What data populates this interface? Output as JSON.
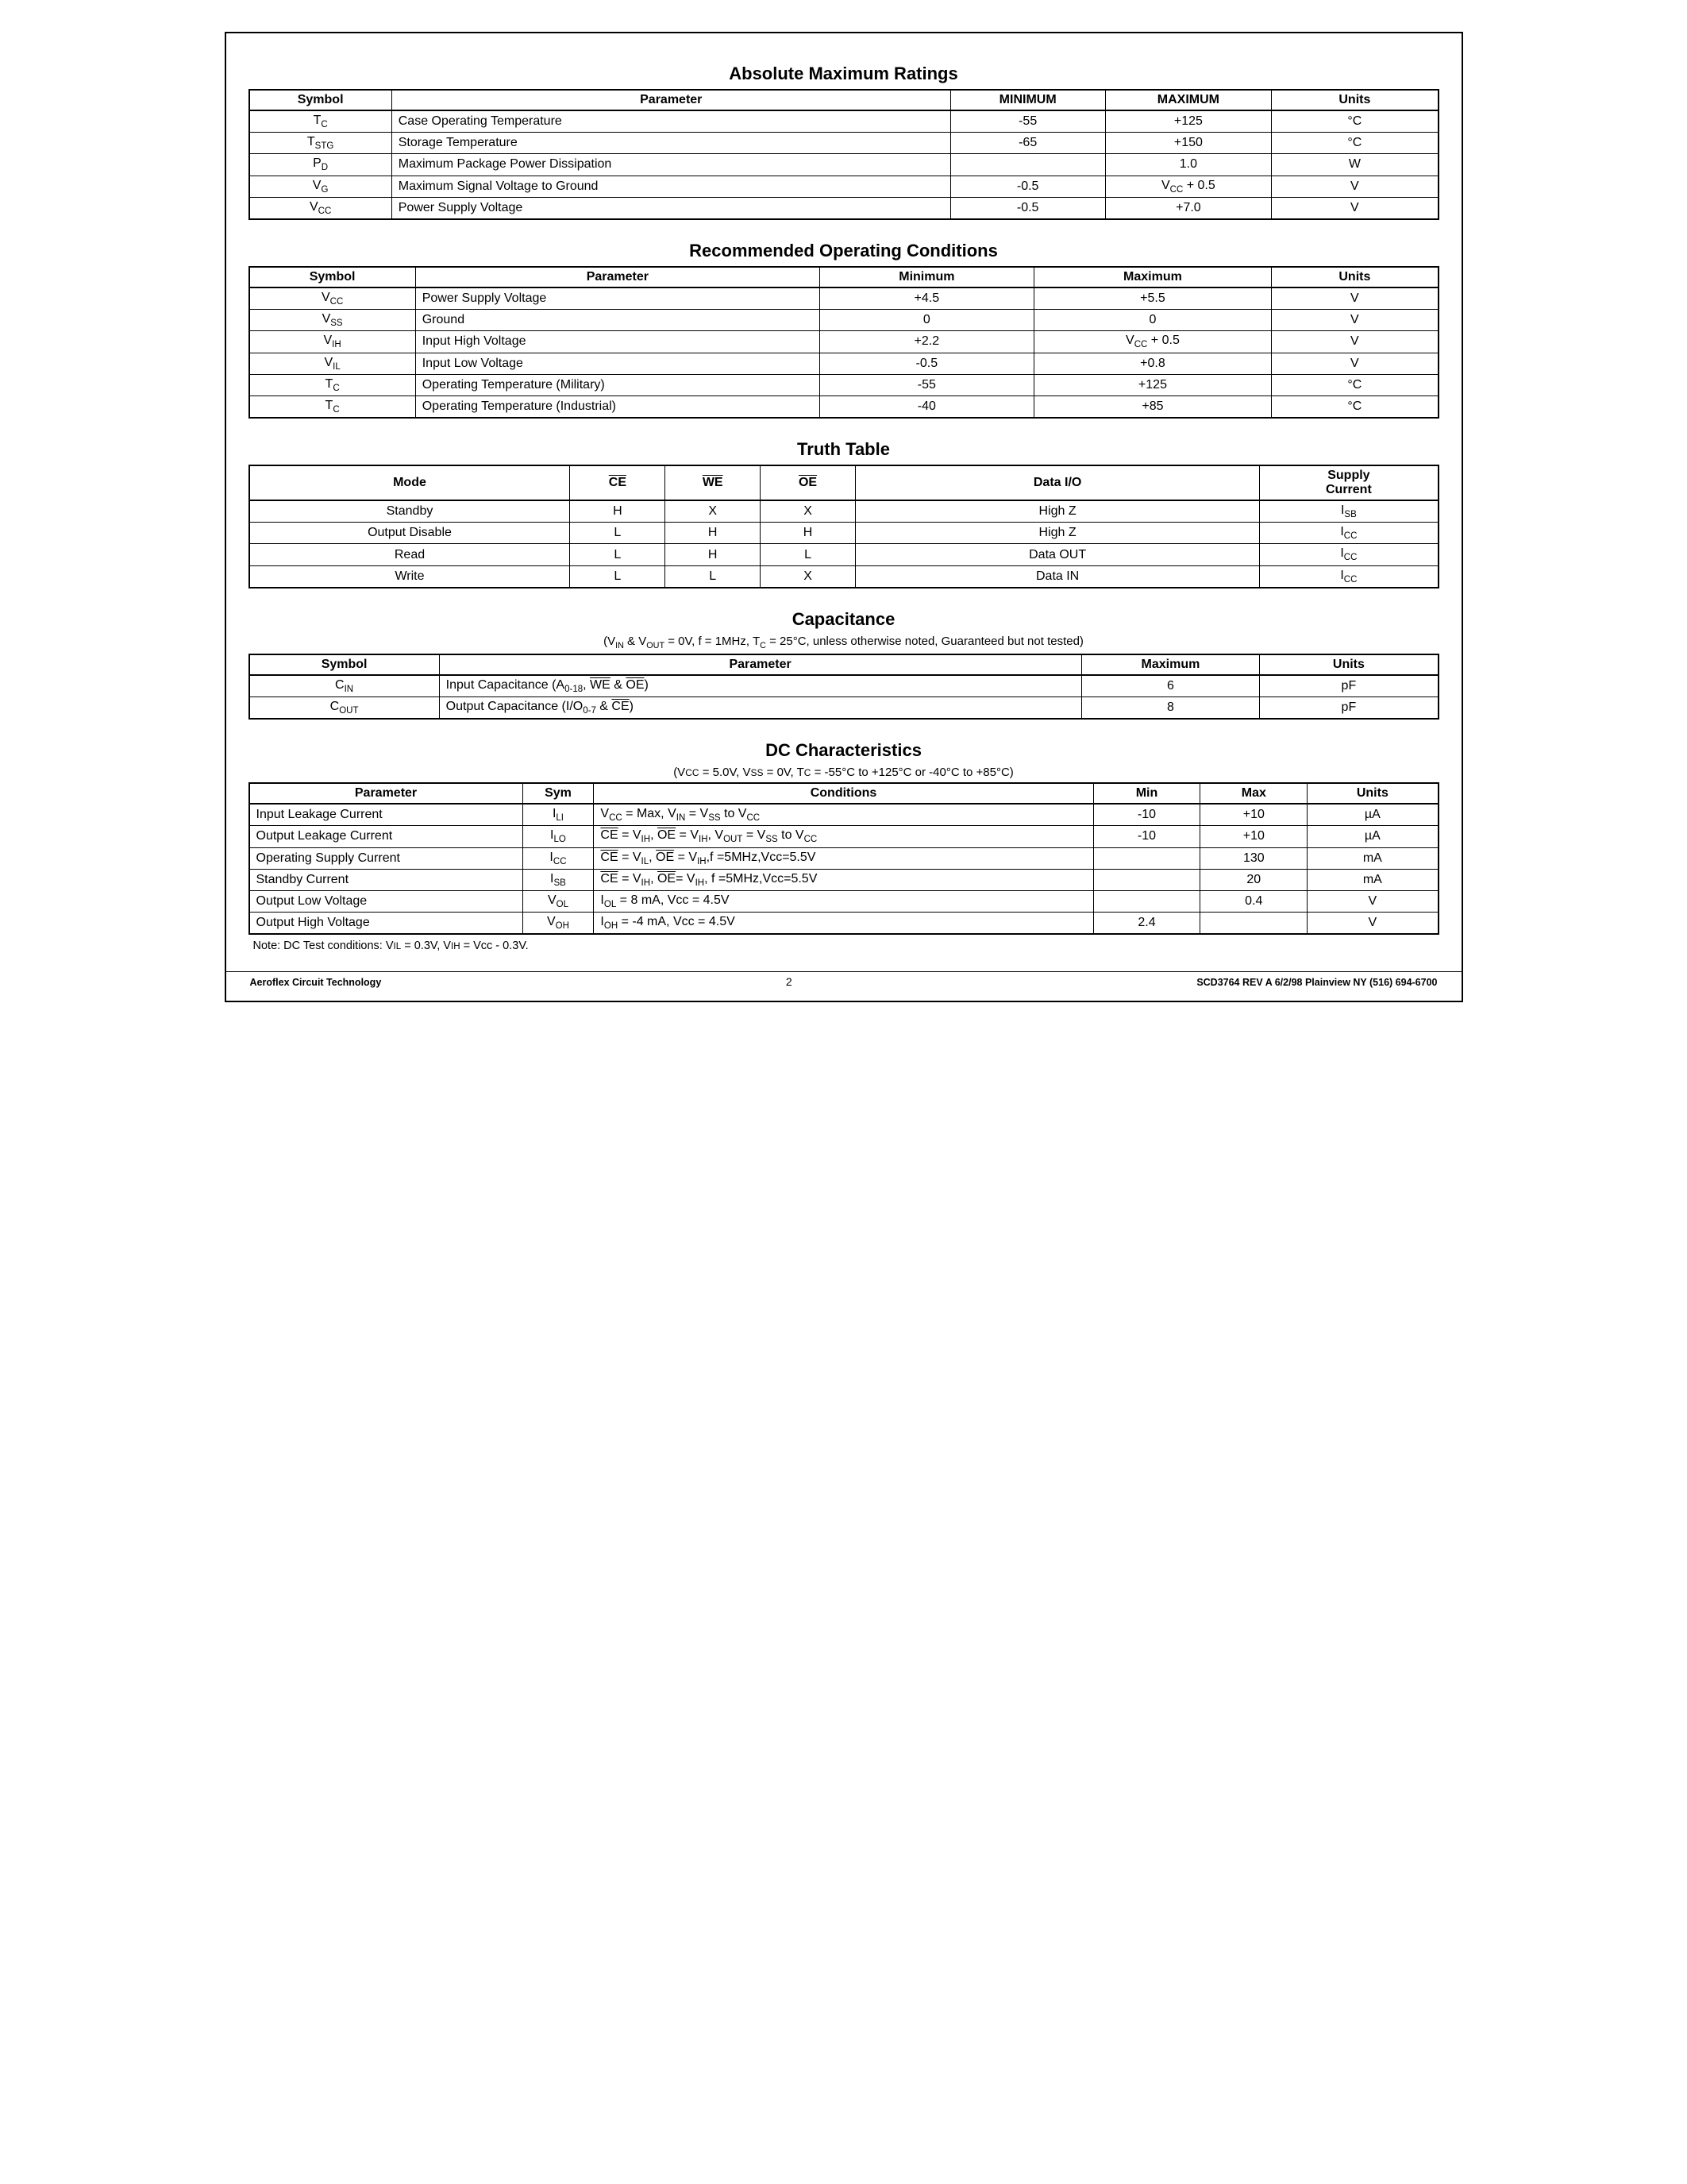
{
  "sections": {
    "amr": {
      "title": "Absolute Maximum Ratings",
      "headers": [
        "Symbol",
        "Parameter",
        "MINIMUM",
        "MAXIMUM",
        "Units"
      ],
      "rows": [
        {
          "sym_html": "T<sub>C</sub>",
          "param": "Case Operating Temperature",
          "min": "-55",
          "max": "+125",
          "units": "°C"
        },
        {
          "sym_html": "T<sub>STG</sub>",
          "param": "Storage Temperature",
          "min": "-65",
          "max": "+150",
          "units": "°C"
        },
        {
          "sym_html": "P<sub>D</sub>",
          "param": "Maximum Package Power Dissipation",
          "min": "",
          "max": "1.0",
          "units": "W"
        },
        {
          "sym_html": "V<sub>G</sub>",
          "param": "Maximum Signal Voltage to Ground",
          "min": "-0.5",
          "max_html": "V<sub>CC</sub> + 0.5",
          "units": "V"
        },
        {
          "sym_html": "V<sub>CC</sub>",
          "param": "Power Supply Voltage",
          "min": "-0.5",
          "max": "+7.0",
          "units": "V"
        }
      ]
    },
    "roc": {
      "title": "Recommended Operating Conditions",
      "headers": [
        "Symbol",
        "Parameter",
        "Minimum",
        "Maximum",
        "Units"
      ],
      "rows": [
        {
          "sym_html": "V<sub>CC</sub>",
          "param": "Power Supply Voltage",
          "min": "+4.5",
          "max": "+5.5",
          "units": "V"
        },
        {
          "sym_html": "V<sub>SS</sub>",
          "param": "Ground",
          "min": "0",
          "max": "0",
          "units": "V"
        },
        {
          "sym_html": "V<sub>IH</sub>",
          "param": "Input High Voltage",
          "min": "+2.2",
          "max_html": "V<sub>CC</sub> + 0.5",
          "units": "V"
        },
        {
          "sym_html": "V<sub>IL</sub>",
          "param": "Input Low Voltage",
          "min": "-0.5",
          "max": "+0.8",
          "units": "V"
        },
        {
          "sym_html": "T<sub>C</sub>",
          "param": "Operating Temperature (Military)",
          "min": "-55",
          "max": "+125",
          "units": "°C"
        },
        {
          "sym_html": "T<sub>C</sub>",
          "param": "Operating Temperature (Industrial)",
          "min": "-40",
          "max": "+85",
          "units": "°C"
        }
      ]
    },
    "truth": {
      "title": "Truth Table",
      "headers_html": [
        "Mode",
        "<span class='ov'>CE</span>",
        "<span class='ov'>WE</span>",
        "<span class='ov'>OE</span>",
        "Data I/O",
        "Supply<br>Current"
      ],
      "rows": [
        {
          "mode": "Standby",
          "ce": "H",
          "we": "X",
          "oe": "X",
          "dio": "High Z",
          "sc_html": "I<sub>SB</sub>"
        },
        {
          "mode": "Output Disable",
          "ce": "L",
          "we": "H",
          "oe": "H",
          "dio": "High Z",
          "sc_html": "I<sub>CC</sub>"
        },
        {
          "mode": "Read",
          "ce": "L",
          "we": "H",
          "oe": "L",
          "dio": "Data OUT",
          "sc_html": "I<sub>CC</sub>"
        },
        {
          "mode": "Write",
          "ce": "L",
          "we": "L",
          "oe": "X",
          "dio": "Data IN",
          "sc_html": "I<sub>CC</sub>"
        }
      ]
    },
    "cap": {
      "title": "Capacitance",
      "sub_html": "(V<sub>IN</sub> & V<sub>OUT</sub> = 0V, f = 1MHz, T<sub>C</sub> = 25°C, unless otherwise noted, Guaranteed but not tested)",
      "headers": [
        "Symbol",
        "Parameter",
        "Maximum",
        "Units"
      ],
      "rows": [
        {
          "sym_html": "C<sub>IN</sub>",
          "param_html": "Input Capacitance (A<sub>0-18</sub>, <span class='ov'>WE</span> & <span class='ov'>OE</span>)",
          "max": "6",
          "units": "pF"
        },
        {
          "sym_html": "C<sub>OUT</sub>",
          "param_html": "Output Capacitance (I/O<sub>0-7</sub> & <span class='ov'>CE</span>)",
          "max": "8",
          "units": "pF"
        }
      ]
    },
    "dc": {
      "title": "DC Characteristics",
      "sub_html": "(V<span style='font-size:0.8em'>CC</span> = 5.0V, V<span style='font-size:0.8em'>SS</span> = 0V, T<span style='font-size:0.8em'>C</span> = -55°C to +125°C or -40°C to +85°C)",
      "headers": [
        "Parameter",
        "Sym",
        "Conditions",
        "Min",
        "Max",
        "Units"
      ],
      "rows": [
        {
          "param": "Input Leakage Current",
          "sym_html": "I<sub>LI</sub>",
          "cond_html": "V<sub>CC</sub> = Max, V<sub>IN</sub> = V<sub>SS</sub> to V<sub>CC</sub>",
          "min": "-10",
          "max": "+10",
          "units": "µA"
        },
        {
          "param": "Output Leakage Current",
          "sym_html": "I<sub>LO</sub>",
          "cond_html": "<span class='ov'>CE</span> = V<sub>IH</sub>, <span class='ov'>OE</span> = V<sub>IH</sub>, V<sub>OUT</sub> =  V<sub>SS</sub> to V<sub>CC</sub>",
          "min": "-10",
          "max": "+10",
          "units": "µA"
        },
        {
          "param": "Operating Supply Current",
          "sym_html": "I<sub>CC</sub>",
          "cond_html": "<span class='ov'>CE</span> = V<sub>IL</sub>, <span class='ov'>OE</span> = V<sub>IH</sub>,f =5MHz,Vcc=5.5V",
          "min": "",
          "max": "130",
          "units": "mA"
        },
        {
          "param": "Standby Current",
          "sym_html": "I<sub>SB</sub>",
          "cond_html": "<span class='ov'>CE</span> =  V<sub>IH</sub>, <span class='ov'>OE</span>= V<sub>IH</sub>, f =5MHz,Vcc=5.5V",
          "min": "",
          "max": "20",
          "units": "mA"
        },
        {
          "param": "Output Low Voltage",
          "sym_html": "V<sub>OL</sub>",
          "cond_html": "I<sub>OL</sub> = 8 mA, Vcc = 4.5V",
          "min": "",
          "max": "0.4",
          "units": "V"
        },
        {
          "param": "Output High Voltage",
          "sym_html": "V<sub>OH</sub>",
          "cond_html": "I<sub>OH</sub> = -4 mA, Vcc = 4.5V",
          "min": "2.4",
          "max": "",
          "units": "V"
        }
      ],
      "note_html": "Note: DC Test conditions: V<span style='font-size:0.8em'>IL</span> = 0.3V, V<span style='font-size:0.8em'>IH</span> = Vcc - 0.3V."
    }
  },
  "footer": {
    "left": "Aeroflex Circuit Technology",
    "mid": "2",
    "right": "SCD3764 REV A  6/2/98   Plainview NY (516) 694-6700"
  },
  "col_widths": {
    "amr": [
      "12%",
      "47%",
      "13%",
      "14%",
      "14%"
    ],
    "roc": [
      "14%",
      "34%",
      "18%",
      "20%",
      "14%"
    ],
    "truth": [
      "27%",
      "8%",
      "8%",
      "8%",
      "34%",
      "15%"
    ],
    "cap": [
      "16%",
      "54%",
      "15%",
      "15%"
    ],
    "dc": [
      "23%",
      "6%",
      "42%",
      "9%",
      "9%",
      "11%"
    ]
  }
}
